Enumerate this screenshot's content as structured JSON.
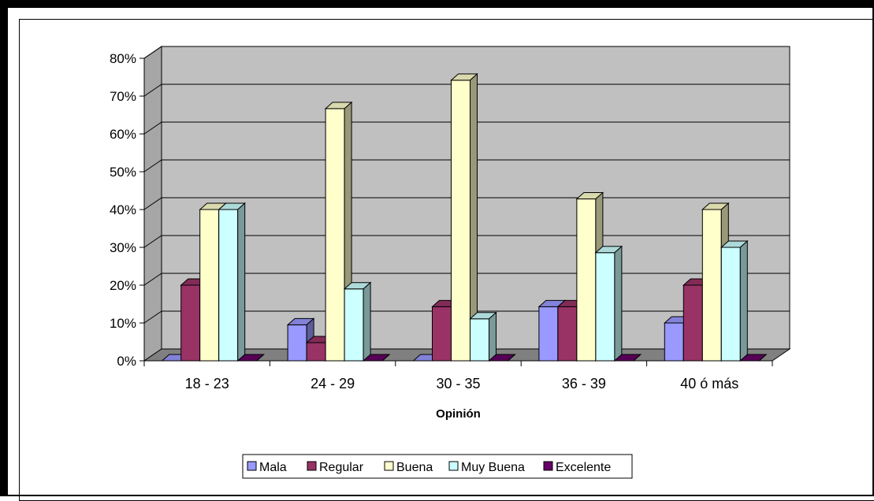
{
  "chart_data": {
    "type": "bar",
    "style": "3d-clustered-column",
    "title": "",
    "xlabel": "Opinión",
    "ylabel": "",
    "categories": [
      "18 - 23",
      "24 - 29",
      "30 - 35",
      "36 - 39",
      "40 ó más"
    ],
    "ylim": [
      0,
      0.8
    ],
    "yticks": [
      "0%",
      "10%",
      "20%",
      "30%",
      "40%",
      "50%",
      "60%",
      "70%",
      "80%"
    ],
    "grid": true,
    "legend_position": "bottom",
    "series": [
      {
        "name": "Mala",
        "color": "#9999FF",
        "values": [
          0.0,
          0.095,
          0.0,
          0.143,
          0.1
        ]
      },
      {
        "name": "Regular",
        "color": "#993366",
        "values": [
          0.2,
          0.048,
          0.143,
          0.143,
          0.2
        ]
      },
      {
        "name": "Buena",
        "color": "#FFFFCC",
        "values": [
          0.4,
          0.667,
          0.742,
          0.428,
          0.4
        ]
      },
      {
        "name": "Muy Buena",
        "color": "#CCFFFF",
        "values": [
          0.4,
          0.19,
          0.111,
          0.286,
          0.3
        ]
      },
      {
        "name": "Excelente",
        "color": "#660066",
        "values": [
          0.0,
          0.0,
          0.0,
          0.0,
          0.0
        ]
      }
    ]
  },
  "colors": {
    "wall": "#C0C0C0",
    "floor": "#808080",
    "side_wall": "#A6A6A6"
  }
}
